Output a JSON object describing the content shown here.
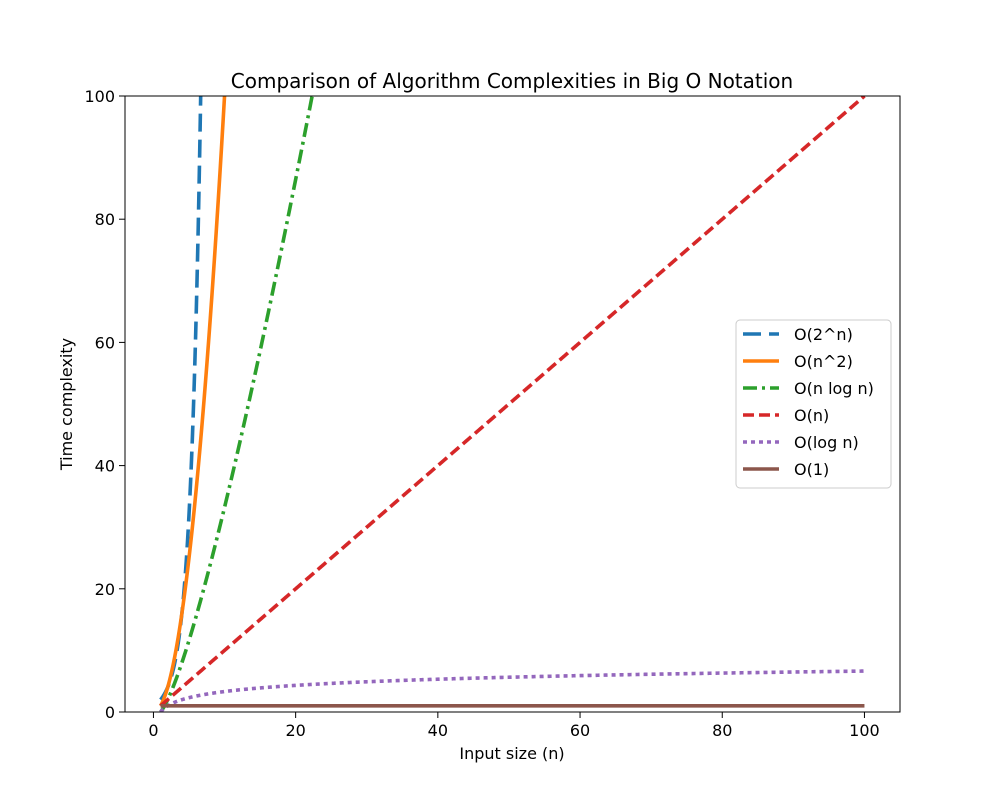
{
  "chart_data": {
    "type": "line",
    "title": "Comparison of Algorithm Complexities in Big O Notation",
    "xlabel": "Input size (n)",
    "ylabel": "Time complexity",
    "xlim": [
      -4,
      105
    ],
    "ylim": [
      0,
      100
    ],
    "xticks": [
      0,
      20,
      40,
      60,
      80,
      100
    ],
    "yticks": [
      0,
      20,
      40,
      60,
      80,
      100
    ],
    "x_range": [
      1,
      100
    ],
    "grid": false,
    "legend_position": "center-right",
    "series": [
      {
        "name": "O(2^n)",
        "function": "2^n",
        "color": "#1f77b4",
        "style": "dashed-long"
      },
      {
        "name": "O(n^2)",
        "function": "n^2",
        "color": "#ff7f0e",
        "style": "solid"
      },
      {
        "name": "O(n log n)",
        "function": "n log n",
        "color": "#2ca02c",
        "style": "dashdot"
      },
      {
        "name": "O(n)",
        "function": "n",
        "color": "#d62728",
        "style": "dashed"
      },
      {
        "name": "O(log n)",
        "function": "log n",
        "color": "#9467bd",
        "style": "dotted"
      },
      {
        "name": "O(1)",
        "function": "1",
        "color": "#8c564b",
        "style": "solid"
      }
    ]
  }
}
